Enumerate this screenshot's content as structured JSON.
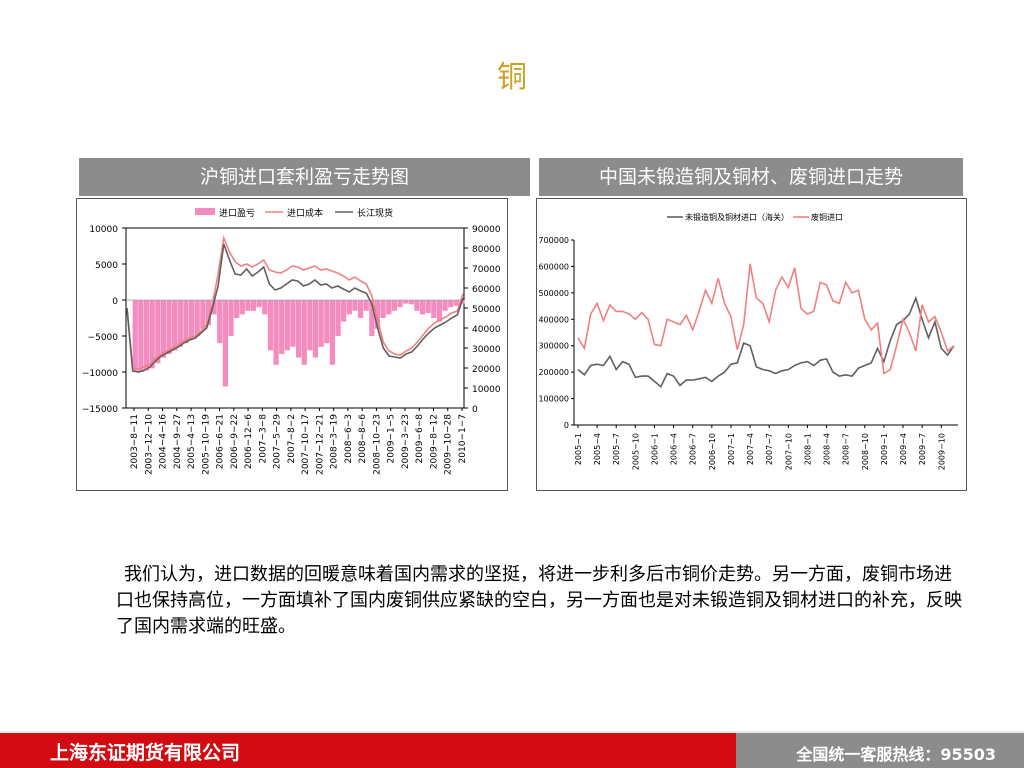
{
  "page_title": "铜",
  "charts": {
    "left": {
      "header": "沪铜进口套利盈亏走势图",
      "legend": [
        "进口盈亏",
        "进口成本",
        "长江现货"
      ],
      "left_axis_ticks": [
        "10000",
        "5000",
        "0",
        "−5000",
        "−10000",
        "−15000"
      ],
      "right_axis_ticks": [
        "90000",
        "80000",
        "70000",
        "60000",
        "50000",
        "40000",
        "30000",
        "20000",
        "10000",
        "0"
      ],
      "x_ticks": [
        "2003−8−11",
        "2003−12−10",
        "2004−4−16",
        "2004−9−27",
        "2005−4−13",
        "2005−10−19",
        "2006−6−21",
        "2006−9−22",
        "2006−12−6",
        "2007−3−8",
        "2007−5−29",
        "2007−8−2",
        "2007−10−17",
        "2007−12−21",
        "2008−3−19",
        "2008−6−3",
        "2008−8−6",
        "2008−10−23",
        "2009−1−5",
        "2009−3−23",
        "2009−6−8",
        "2009−8−12",
        "2009−10−28",
        "2010−1−7"
      ]
    },
    "right": {
      "header": "中国未锻造铜及铜材、废铜进口走势",
      "legend": [
        "未锻造铜及铜材进口（海关）",
        "废铜进口"
      ],
      "y_ticks": [
        "700000",
        "600000",
        "500000",
        "400000",
        "300000",
        "200000",
        "100000",
        "0"
      ],
      "x_ticks": [
        "2005−1",
        "2005−4",
        "2005−7",
        "2005−10",
        "2006−1",
        "2006−4",
        "2006−7",
        "2006−10",
        "2007−1",
        "2007−4",
        "2007−7",
        "2007−10",
        "2008−1",
        "2008−4",
        "2008−7",
        "2008−10",
        "2009−1",
        "2009−4",
        "2009−7",
        "2009−10"
      ]
    }
  },
  "chart_data": [
    {
      "type": "line",
      "series": [
        {
          "name": "进口盈亏",
          "axis": "left",
          "color": "#f48cbf",
          "values": [
            0,
            -10000,
            -10000,
            -9800,
            -9500,
            -8800,
            -8000,
            -7500,
            -7000,
            -6500,
            -6000,
            -5500,
            -5000,
            -4000,
            -3500,
            -2000,
            -6000,
            -12000,
            -5000,
            -2500,
            -2000,
            -1500,
            -1500,
            -1000,
            -2000,
            -7000,
            -9000,
            -7500,
            -7000,
            -6500,
            -8000,
            -9000,
            -7000,
            -8000,
            -6500,
            -6000,
            -9000,
            -5000,
            -3000,
            -2000,
            -1500,
            -2500,
            -1500,
            -5000,
            -4000,
            -2500,
            -2000,
            -1500,
            -1000,
            -500,
            -600,
            -1500,
            -2000,
            -1800,
            -2500,
            -3000,
            -1500,
            -1000,
            -800,
            -500
          ]
        },
        {
          "name": "进口成本",
          "axis": "right",
          "color": "#f08080",
          "values": [
            50000,
            20000,
            19500,
            20500,
            22000,
            25000,
            27000,
            28500,
            30000,
            31500,
            33500,
            35000,
            36000,
            38500,
            41500,
            52000,
            67000,
            85000,
            78000,
            73000,
            71000,
            72000,
            70500,
            72000,
            74000,
            69000,
            68000,
            67500,
            69000,
            71000,
            70500,
            69000,
            70000,
            71000,
            69000,
            69500,
            68500,
            67500,
            66000,
            64000,
            65500,
            63500,
            62000,
            56000,
            44000,
            33000,
            28500,
            27000,
            26500,
            28500,
            30000,
            33000,
            36500,
            40000,
            42500,
            44000,
            45500,
            47500,
            48500,
            57000
          ]
        },
        {
          "name": "长江现货",
          "axis": "right",
          "color": "#606060",
          "values": [
            50000,
            18500,
            18000,
            18800,
            20500,
            23500,
            26000,
            27500,
            29000,
            30500,
            32500,
            34000,
            35000,
            37500,
            40000,
            50000,
            61000,
            82000,
            74000,
            67000,
            66500,
            69500,
            66000,
            68000,
            70500,
            62000,
            59000,
            60000,
            62000,
            64000,
            63500,
            61000,
            62000,
            64000,
            61500,
            62000,
            60000,
            61000,
            59500,
            58000,
            60000,
            58500,
            57500,
            52000,
            40000,
            30000,
            26000,
            25500,
            25000,
            27000,
            28000,
            31000,
            34500,
            37500,
            40000,
            41500,
            43000,
            45000,
            46500,
            55000
          ]
        }
      ]
    },
    {
      "type": "line",
      "series": [
        {
          "name": "未锻造铜及铜材进口（海关）",
          "color": "#606060",
          "values": [
            210000,
            190000,
            225000,
            230000,
            225000,
            260000,
            210000,
            240000,
            230000,
            180000,
            185000,
            185000,
            165000,
            145000,
            195000,
            185000,
            150000,
            170000,
            170000,
            175000,
            180000,
            165000,
            185000,
            200000,
            230000,
            235000,
            310000,
            300000,
            220000,
            210000,
            205000,
            195000,
            205000,
            210000,
            225000,
            235000,
            240000,
            225000,
            245000,
            250000,
            200000,
            185000,
            190000,
            185000,
            215000,
            225000,
            235000,
            290000,
            240000,
            320000,
            380000,
            395000,
            420000,
            480000,
            400000,
            330000,
            390000,
            290000,
            265000,
            300000
          ]
        },
        {
          "name": "废铜进口",
          "color": "#f08080",
          "values": [
            330000,
            290000,
            420000,
            460000,
            395000,
            455000,
            430000,
            430000,
            420000,
            400000,
            425000,
            400000,
            305000,
            300000,
            400000,
            390000,
            380000,
            415000,
            360000,
            430000,
            510000,
            460000,
            555000,
            460000,
            410000,
            285000,
            380000,
            610000,
            480000,
            460000,
            390000,
            510000,
            560000,
            520000,
            595000,
            440000,
            420000,
            430000,
            540000,
            530000,
            470000,
            460000,
            540000,
            500000,
            510000,
            400000,
            360000,
            385000,
            195000,
            210000,
            300000,
            400000,
            350000,
            280000,
            455000,
            390000,
            410000,
            350000,
            280000,
            300000
          ]
        }
      ]
    }
  ],
  "body_text": "我们认为，进口数据的回暖意味着国内需求的坚挺，将进一步利多后市铜价走势。另一方面，废铜市场进口也保持高位，一方面填补了国内废铜供应紧缺的空白，另一方面也是对未锻造铜及铜材进口的补充，反映了国内需求端的旺盛。",
  "footer": {
    "company": "上海东证期货有限公司",
    "hotline": "全国统一客服热线：95503"
  }
}
